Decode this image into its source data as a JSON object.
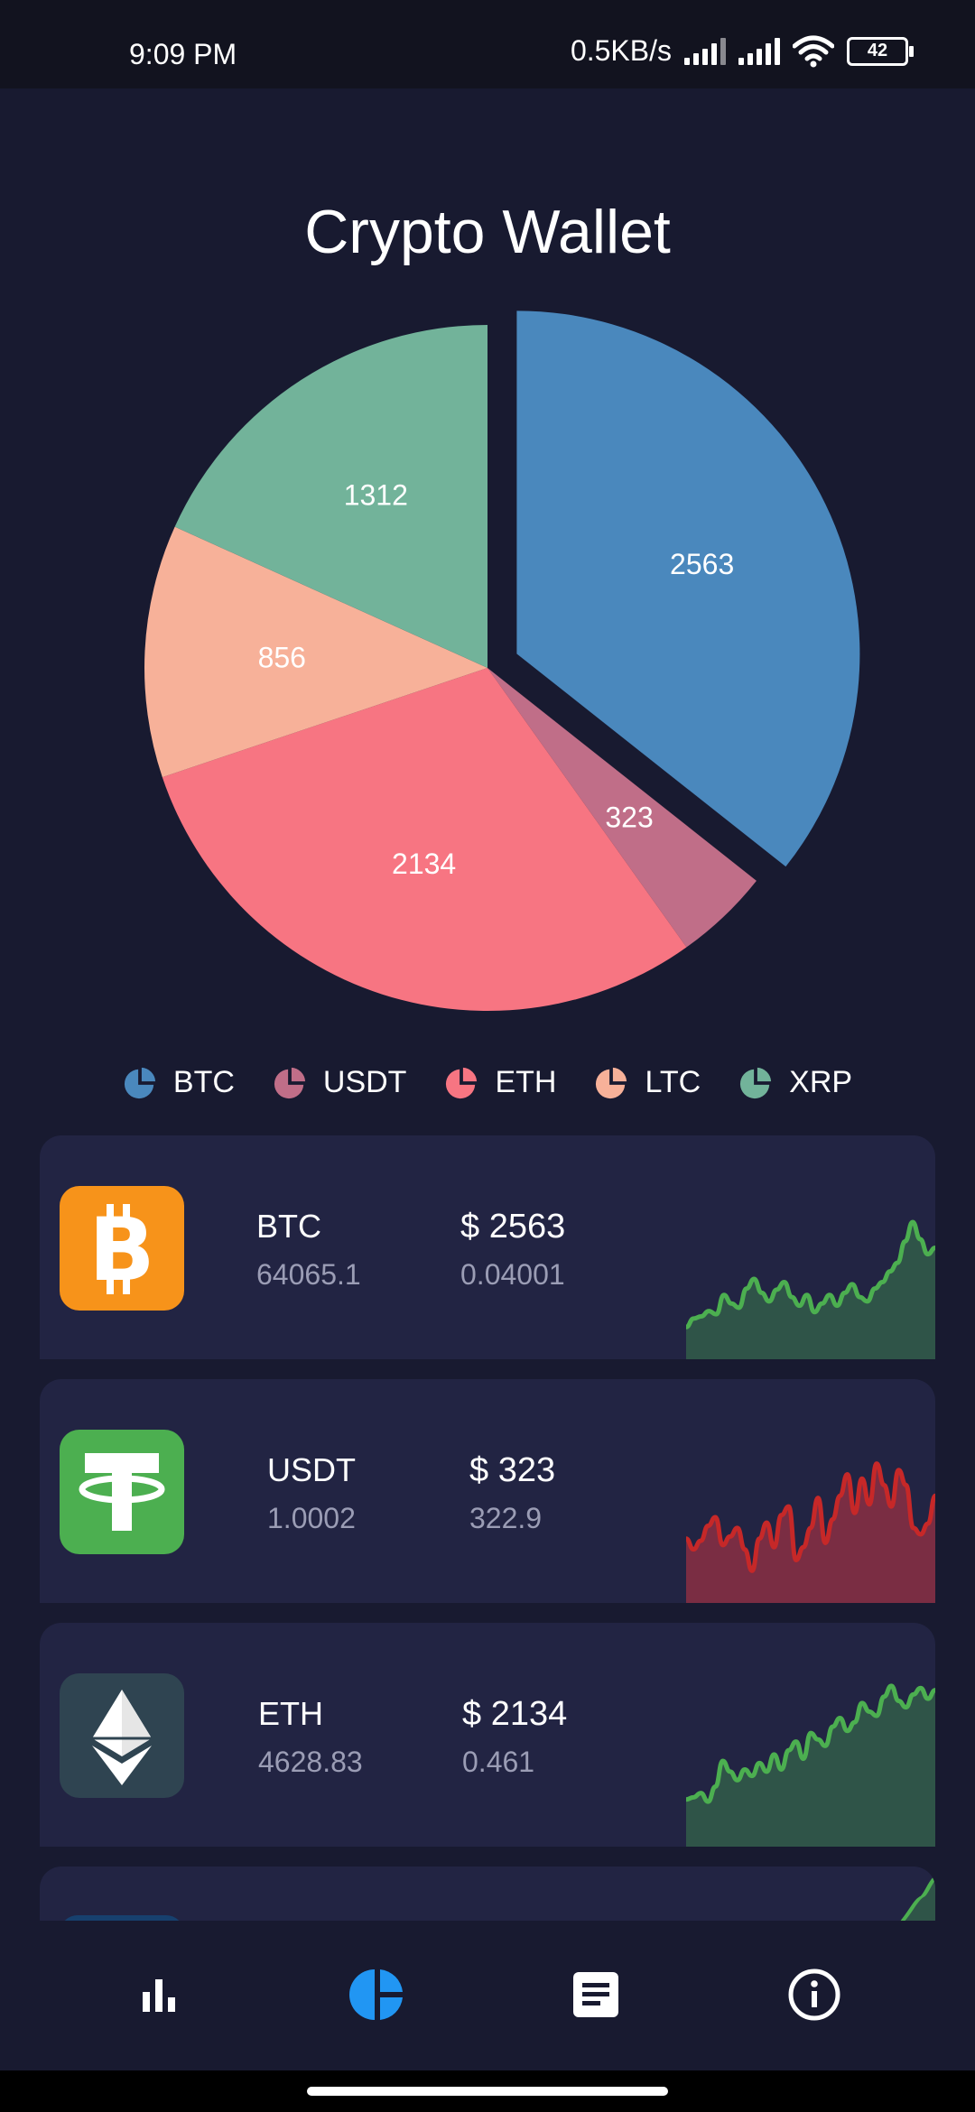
{
  "status_bar": {
    "time": "9:09 PM",
    "net_speed": "0.5KB/s",
    "battery": "42"
  },
  "app": {
    "title": "Crypto Wallet"
  },
  "chart_data": {
    "type": "pie",
    "title": "Crypto Wallet",
    "slices": [
      {
        "label": "BTC",
        "value": 2563,
        "color": "#4a88bd",
        "exploded": true
      },
      {
        "label": "USDT",
        "value": 323,
        "color": "#c06e88"
      },
      {
        "label": "ETH",
        "value": 2134,
        "color": "#f77582"
      },
      {
        "label": "LTC",
        "value": 856,
        "color": "#f7b199"
      },
      {
        "label": "XRP",
        "value": 1312,
        "color": "#72b39a"
      }
    ],
    "legend_position": "bottom"
  },
  "legend": [
    {
      "label": "BTC",
      "color": "#4a88bd"
    },
    {
      "label": "USDT",
      "color": "#c06e88"
    },
    {
      "label": "ETH",
      "color": "#f77582"
    },
    {
      "label": "LTC",
      "color": "#f7b199"
    },
    {
      "label": "XRP",
      "color": "#72b39a"
    }
  ],
  "coins": [
    {
      "symbol": "BTC",
      "price": "64065.1",
      "value": "$ 2563",
      "amount": "0.04001",
      "logo": "bitcoin-icon",
      "logo_bg": "#f7931a",
      "trend": "up",
      "spark_color": "#4caf50",
      "spark_fill": "#2f5448",
      "spark": [
        30,
        38,
        40,
        45,
        42,
        60,
        52,
        48,
        66,
        75,
        62,
        54,
        65,
        72,
        58,
        50,
        60,
        44,
        52,
        60,
        50,
        62,
        70,
        58,
        54,
        66,
        72,
        82,
        90,
        110,
        128,
        112,
        98,
        104
      ]
    },
    {
      "symbol": "USDT",
      "price": "1.0002",
      "value": "$ 323",
      "amount": "322.9",
      "logo": "tether-icon",
      "logo_bg": "#4caf50",
      "trend": "down",
      "spark_color": "#c62828",
      "spark_fill": "#7a2d43",
      "spark": [
        60,
        50,
        58,
        72,
        80,
        54,
        62,
        70,
        50,
        30,
        60,
        75,
        52,
        82,
        90,
        40,
        52,
        70,
        98,
        56,
        78,
        100,
        120,
        84,
        116,
        92,
        130,
        110,
        90,
        124,
        110,
        70,
        64,
        74,
        100
      ]
    },
    {
      "symbol": "ETH",
      "price": "4628.83",
      "value": "$ 2134",
      "amount": "0.461",
      "logo": "ethereum-icon",
      "logo_bg": "#2f4451",
      "trend": "up",
      "spark_color": "#4caf50",
      "spark_fill": "#2f5448",
      "spark": [
        44,
        46,
        50,
        42,
        56,
        80,
        70,
        62,
        72,
        66,
        78,
        70,
        86,
        72,
        90,
        98,
        82,
        106,
        100,
        94,
        112,
        120,
        108,
        116,
        134,
        126,
        122,
        140,
        150,
        136,
        130,
        142,
        148,
        138,
        146
      ]
    }
  ],
  "nav": [
    {
      "name": "nav-stats",
      "icon": "bar-chart-icon",
      "active": false
    },
    {
      "name": "nav-wallet",
      "icon": "pie-chart-icon",
      "active": true
    },
    {
      "name": "nav-news",
      "icon": "article-icon",
      "active": false
    },
    {
      "name": "nav-info",
      "icon": "info-icon",
      "active": false
    }
  ],
  "accent_color": "#2196f3"
}
